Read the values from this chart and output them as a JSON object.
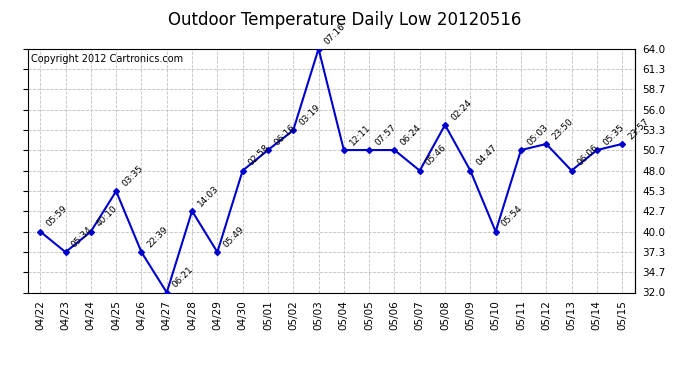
{
  "title": "Outdoor Temperature Daily Low 20120516",
  "copyright": "Copyright 2012 Cartronics.com",
  "background_color": "#ffffff",
  "line_color": "#0000cc",
  "marker_color": "#0000cc",
  "x_labels": [
    "04/22",
    "04/23",
    "04/24",
    "04/25",
    "04/26",
    "04/27",
    "04/28",
    "04/29",
    "04/30",
    "05/01",
    "05/02",
    "05/03",
    "05/04",
    "05/05",
    "05/06",
    "05/07",
    "05/08",
    "05/09",
    "05/10",
    "05/11",
    "05/12",
    "05/13",
    "05/14",
    "05/15"
  ],
  "y_values": [
    40.0,
    37.3,
    40.0,
    45.3,
    37.3,
    32.0,
    42.7,
    37.3,
    48.0,
    50.7,
    53.3,
    64.0,
    50.7,
    50.7,
    50.7,
    48.0,
    54.0,
    48.0,
    40.0,
    50.7,
    51.5,
    48.0,
    50.7,
    51.5
  ],
  "point_labels": [
    "05:59",
    "05:34",
    "40:10",
    "03:35",
    "22:39",
    "06:21",
    "14:03",
    "05:49",
    "02:58",
    "06:16",
    "03:19",
    "07:16",
    "12:11",
    "07:57",
    "06:24",
    "05:46",
    "02:24",
    "04:47",
    "05:54",
    "05:03",
    "23:50",
    "06:06",
    "05:35",
    "23:57"
  ],
  "ylim_min": 32.0,
  "ylim_max": 64.0,
  "yticks": [
    32.0,
    34.7,
    37.3,
    40.0,
    42.7,
    45.3,
    48.0,
    50.7,
    53.3,
    56.0,
    58.7,
    61.3,
    64.0
  ],
  "grid_color": "#c0c0c0",
  "title_fontsize": 12,
  "copyright_fontsize": 7,
  "label_fontsize": 6.5,
  "tick_fontsize": 7.5
}
